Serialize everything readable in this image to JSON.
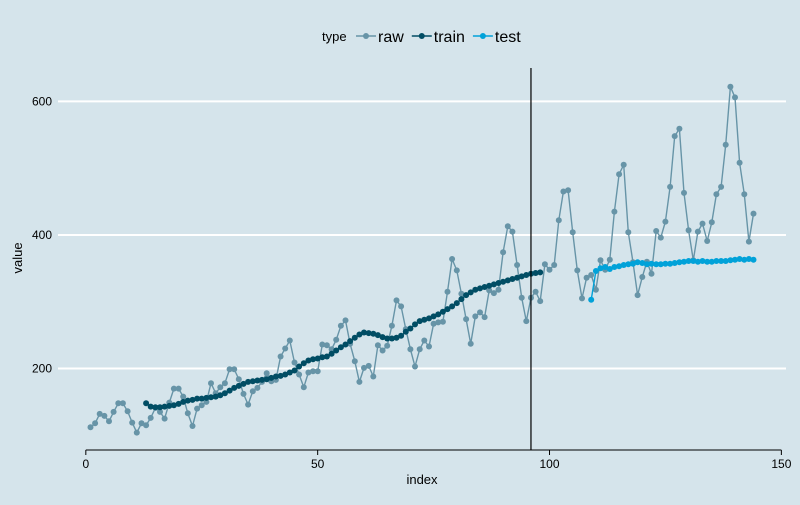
{
  "chart_data": {
    "type": "line",
    "legend": {
      "title": "type",
      "position": "top"
    },
    "xlabel": "index",
    "ylabel": "value",
    "x_ticks": [
      0,
      50,
      100,
      150
    ],
    "y_ticks": [
      200,
      400,
      600
    ],
    "xlim": [
      -6,
      151
    ],
    "ylim": [
      78,
      650
    ],
    "grid": "horizontal major lines",
    "vline_x": 96,
    "colors": {
      "raw": "#6794a7",
      "train": "#014d64",
      "test": "#01a2d9",
      "background": "#d5e4eb",
      "grid": "#ffffff",
      "axis": "#000000"
    },
    "series": [
      {
        "name": "raw",
        "x_start": 1,
        "values": [
          112,
          118,
          132,
          129,
          121,
          135,
          148,
          148,
          136,
          119,
          104,
          118,
          115,
          126,
          141,
          135,
          125,
          149,
          170,
          170,
          158,
          133,
          114,
          140,
          145,
          150,
          178,
          163,
          172,
          178,
          199,
          199,
          184,
          162,
          146,
          166,
          171,
          180,
          193,
          181,
          183,
          218,
          230,
          242,
          209,
          191,
          172,
          194,
          196,
          196,
          236,
          235,
          229,
          243,
          264,
          272,
          237,
          211,
          180,
          201,
          204,
          188,
          235,
          227,
          234,
          264,
          302,
          293,
          259,
          229,
          203,
          229,
          242,
          233,
          267,
          269,
          270,
          315,
          364,
          347,
          312,
          274,
          237,
          278,
          284,
          277,
          317,
          313,
          318,
          374,
          413,
          405,
          355,
          306,
          271,
          306,
          315,
          301,
          356,
          348,
          355,
          422,
          465,
          467,
          404,
          347,
          305,
          336,
          340,
          318,
          362,
          348,
          363,
          435,
          491,
          505,
          404,
          359,
          310,
          337,
          360,
          342,
          406,
          396,
          420,
          472,
          548,
          559,
          463,
          407,
          362,
          405,
          417,
          391,
          419,
          461,
          472,
          535,
          622,
          606,
          508,
          461,
          390,
          432
        ]
      },
      {
        "name": "train",
        "x_start": 13,
        "values": [
          148,
          143,
          142,
          142,
          143,
          144,
          145,
          147,
          150,
          152,
          153,
          155,
          155,
          156,
          157,
          158,
          160,
          163,
          167,
          171,
          174,
          177,
          180,
          181,
          182,
          183,
          184,
          186,
          188,
          189,
          191,
          194,
          197,
          203,
          208,
          212,
          214,
          215,
          217,
          218,
          222,
          227,
          232,
          236,
          241,
          246,
          251,
          254,
          253,
          252,
          250,
          247,
          245,
          245,
          246,
          249,
          255,
          260,
          266,
          271,
          273,
          275,
          278,
          281,
          285,
          289,
          293,
          298,
          304,
          310,
          314,
          318,
          320,
          322,
          324,
          326,
          328,
          330,
          332,
          334,
          336,
          338,
          340,
          342,
          343,
          344
        ]
      },
      {
        "name": "test",
        "x_start": 109,
        "values": [
          303,
          346,
          350,
          352,
          349,
          352,
          353,
          355,
          356,
          357,
          359,
          358,
          356,
          357,
          356,
          356,
          357,
          357,
          358,
          359,
          360,
          361,
          361,
          360,
          361,
          360,
          360,
          361,
          361,
          361,
          362,
          363,
          364,
          363,
          364,
          363
        ]
      }
    ]
  }
}
